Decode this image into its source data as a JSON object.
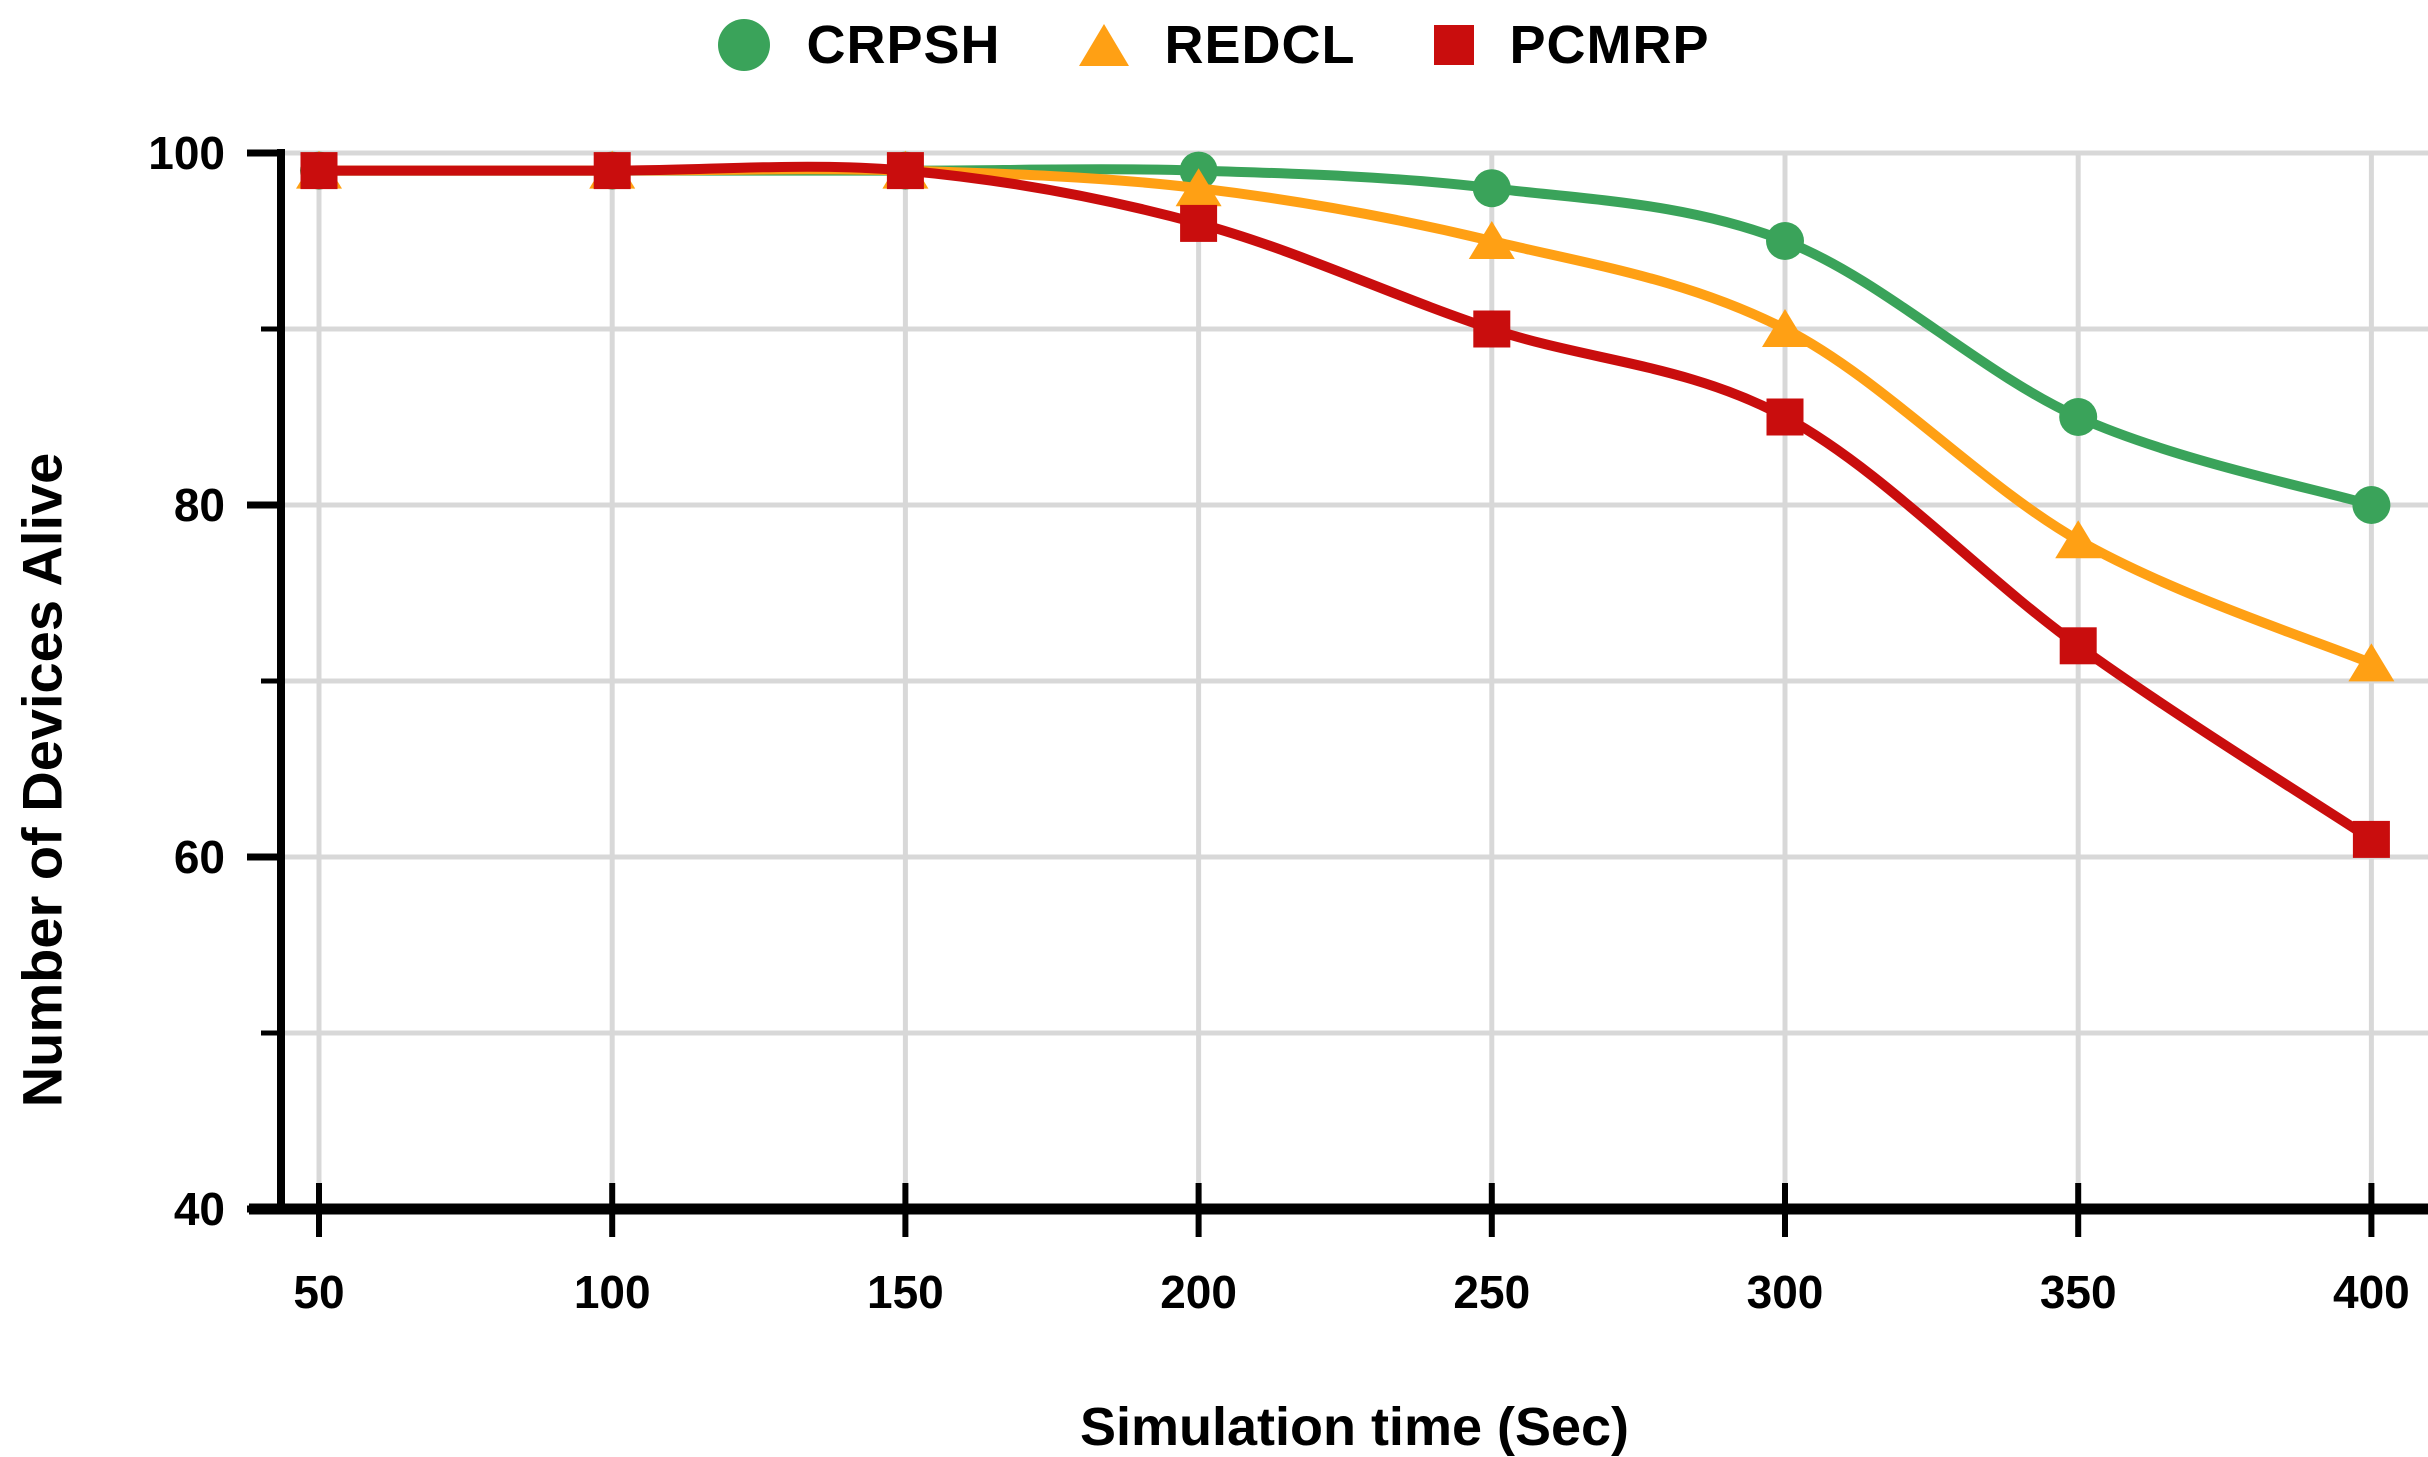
{
  "legend": {
    "items": [
      {
        "label": "CRPSH",
        "marker": "circle",
        "color": "#3aa35a"
      },
      {
        "label": "REDCL",
        "marker": "triangle",
        "color": "#ffa014"
      },
      {
        "label": "PCMRP",
        "marker": "square",
        "color": "#c90d0d"
      }
    ]
  },
  "chart_data": {
    "type": "line",
    "title": "",
    "xlabel": "Simulation time (Sec)",
    "ylabel": "Number of Devices Alive",
    "x": [
      50,
      100,
      150,
      200,
      250,
      300,
      350,
      400
    ],
    "series": [
      {
        "name": "CRPSH",
        "marker": "circle",
        "color": "#3aa35a",
        "values": [
          99,
          99,
          99,
          99,
          98,
          95,
          85,
          80
        ]
      },
      {
        "name": "REDCL",
        "marker": "triangle",
        "color": "#ffa014",
        "values": [
          99,
          99,
          99,
          98,
          95,
          90,
          78,
          71
        ]
      },
      {
        "name": "PCMRP",
        "marker": "square",
        "color": "#c90d0d",
        "values": [
          99,
          99,
          99,
          96,
          90,
          85,
          72,
          61
        ]
      }
    ],
    "xlim": [
      43,
      410
    ],
    "ylim": [
      40,
      100
    ],
    "x_ticks": [
      50,
      100,
      150,
      200,
      250,
      300,
      350,
      400
    ],
    "y_major_ticks": [
      40,
      60,
      80,
      100
    ],
    "y_minor_ticks": [
      50,
      70,
      90
    ],
    "y_gridlines": [
      50,
      60,
      70,
      80,
      90,
      100
    ],
    "grid": true,
    "line_smooth": true,
    "legend_position": "top-center"
  },
  "colors": {
    "background": "#ffffff",
    "grid": "#d8d8d8",
    "axis": "#000000",
    "text": "#000000"
  }
}
